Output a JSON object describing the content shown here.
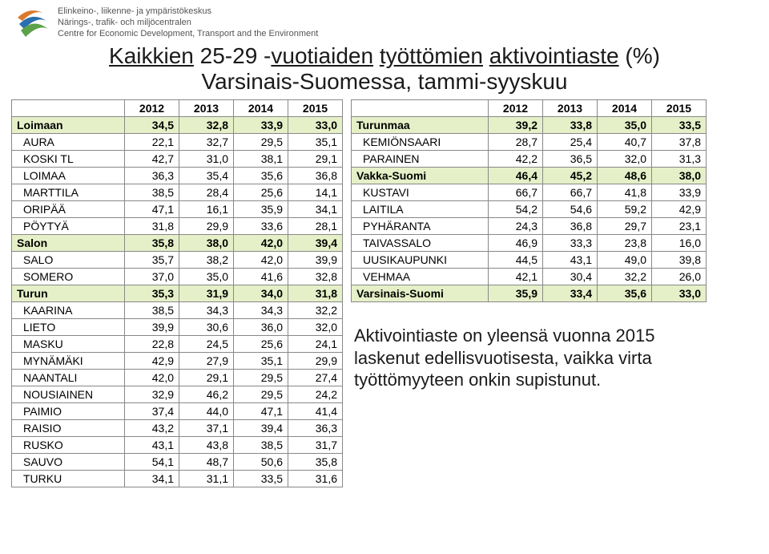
{
  "org": {
    "line1": "Elinkeino-, liikenne- ja ympäristökeskus",
    "line2": "Närings-, trafik- och miljöcentralen",
    "line3": "Centre for Economic Development, Transport and the Environment"
  },
  "title": {
    "l1a": "Kaikkien",
    "l1b": " 25-29 -",
    "l1c": "vuotiaiden",
    "l1d": " ",
    "l1e": "työttömien",
    "l1f": " ",
    "l1g": "aktivointiaste",
    "l1h": " (%)",
    "l2a": "Varsinais-Suomessa, tammi-syyskuu"
  },
  "years": [
    "2012",
    "2013",
    "2014",
    "2015"
  ],
  "left_rows": [
    {
      "name": "Loimaan",
      "type": "region",
      "v": [
        "34,5",
        "32,8",
        "33,9",
        "33,0"
      ]
    },
    {
      "name": "AURA",
      "type": "sub",
      "v": [
        "22,1",
        "32,7",
        "29,5",
        "35,1"
      ]
    },
    {
      "name": "KOSKI TL",
      "type": "sub",
      "v": [
        "42,7",
        "31,0",
        "38,1",
        "29,1"
      ]
    },
    {
      "name": "LOIMAA",
      "type": "sub",
      "v": [
        "36,3",
        "35,4",
        "35,6",
        "36,8"
      ]
    },
    {
      "name": "MARTTILA",
      "type": "sub",
      "v": [
        "38,5",
        "28,4",
        "25,6",
        "14,1"
      ]
    },
    {
      "name": "ORIPÄÄ",
      "type": "sub",
      "v": [
        "47,1",
        "16,1",
        "35,9",
        "34,1"
      ]
    },
    {
      "name": "PÖYTYÄ",
      "type": "sub",
      "v": [
        "31,8",
        "29,9",
        "33,6",
        "28,1"
      ]
    },
    {
      "name": "Salon",
      "type": "region",
      "v": [
        "35,8",
        "38,0",
        "42,0",
        "39,4"
      ]
    },
    {
      "name": "SALO",
      "type": "sub",
      "v": [
        "35,7",
        "38,2",
        "42,0",
        "39,9"
      ]
    },
    {
      "name": "SOMERO",
      "type": "sub",
      "v": [
        "37,0",
        "35,0",
        "41,6",
        "32,8"
      ]
    },
    {
      "name": "Turun",
      "type": "region",
      "v": [
        "35,3",
        "31,9",
        "34,0",
        "31,8"
      ]
    },
    {
      "name": "KAARINA",
      "type": "sub",
      "v": [
        "38,5",
        "34,3",
        "34,3",
        "32,2"
      ]
    },
    {
      "name": "LIETO",
      "type": "sub",
      "v": [
        "39,9",
        "30,6",
        "36,0",
        "32,0"
      ]
    },
    {
      "name": "MASKU",
      "type": "sub",
      "v": [
        "22,8",
        "24,5",
        "25,6",
        "24,1"
      ]
    },
    {
      "name": "MYNÄMÄKI",
      "type": "sub",
      "v": [
        "42,9",
        "27,9",
        "35,1",
        "29,9"
      ]
    },
    {
      "name": "NAANTALI",
      "type": "sub",
      "v": [
        "42,0",
        "29,1",
        "29,5",
        "27,4"
      ]
    },
    {
      "name": "NOUSIAINEN",
      "type": "sub",
      "v": [
        "32,9",
        "46,2",
        "29,5",
        "24,2"
      ]
    },
    {
      "name": "PAIMIO",
      "type": "sub",
      "v": [
        "37,4",
        "44,0",
        "47,1",
        "41,4"
      ]
    },
    {
      "name": "RAISIO",
      "type": "sub",
      "v": [
        "43,2",
        "37,1",
        "39,4",
        "36,3"
      ]
    },
    {
      "name": "RUSKO",
      "type": "sub",
      "v": [
        "43,1",
        "43,8",
        "38,5",
        "31,7"
      ]
    },
    {
      "name": "SAUVO",
      "type": "sub",
      "v": [
        "54,1",
        "48,7",
        "50,6",
        "35,8"
      ]
    },
    {
      "name": "TURKU",
      "type": "sub",
      "v": [
        "34,1",
        "31,1",
        "33,5",
        "31,6"
      ]
    }
  ],
  "right_rows": [
    {
      "name": "Turunmaa",
      "type": "region",
      "v": [
        "39,2",
        "33,8",
        "35,0",
        "33,5"
      ]
    },
    {
      "name": "KEMIÖNSAARI",
      "type": "sub",
      "v": [
        "28,7",
        "25,4",
        "40,7",
        "37,8"
      ]
    },
    {
      "name": "PARAINEN",
      "type": "sub",
      "v": [
        "42,2",
        "36,5",
        "32,0",
        "31,3"
      ]
    },
    {
      "name": "Vakka-Suomi",
      "type": "region",
      "v": [
        "46,4",
        "45,2",
        "48,6",
        "38,0"
      ]
    },
    {
      "name": "KUSTAVI",
      "type": "sub",
      "v": [
        "66,7",
        "66,7",
        "41,8",
        "33,9"
      ]
    },
    {
      "name": "LAITILA",
      "type": "sub",
      "v": [
        "54,2",
        "54,6",
        "59,2",
        "42,9"
      ]
    },
    {
      "name": "PYHÄRANTA",
      "type": "sub",
      "v": [
        "24,3",
        "36,8",
        "29,7",
        "23,1"
      ]
    },
    {
      "name": "TAIVASSALO",
      "type": "sub",
      "v": [
        "46,9",
        "33,3",
        "23,8",
        "16,0"
      ]
    },
    {
      "name": "UUSIKAUPUNKI",
      "type": "sub",
      "v": [
        "44,5",
        "43,1",
        "49,0",
        "39,8"
      ]
    },
    {
      "name": "VEHMAA",
      "type": "sub",
      "v": [
        "42,1",
        "30,4",
        "32,2",
        "26,0"
      ]
    },
    {
      "name": "Varsinais-Suomi",
      "type": "total",
      "v": [
        "35,9",
        "33,4",
        "35,6",
        "33,0"
      ]
    }
  ],
  "note": "Aktivointiaste on yleensä vuonna 2015 laskenut edellisvuotisesta, vaikka virta työttömyyteen onkin supistunut.",
  "colors": {
    "region_bg": "#e6f0c8",
    "border": "#888888",
    "text": "#000000",
    "org_text": "#555555"
  }
}
